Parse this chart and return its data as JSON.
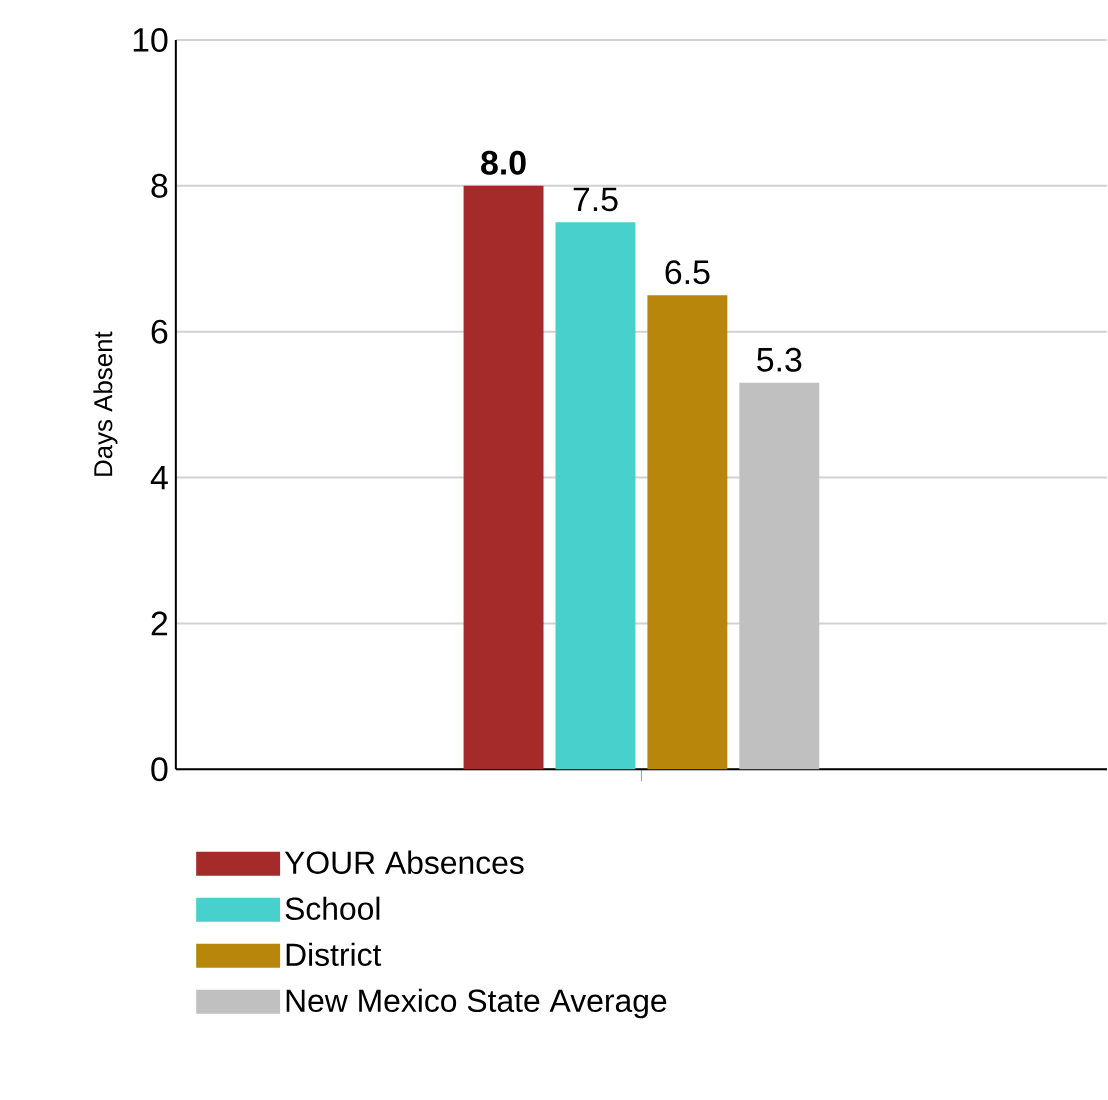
{
  "chart_data": {
    "type": "bar",
    "ylabel": "Days Absent",
    "categories": [
      null
    ],
    "series": [
      {
        "name": "YOUR Absences",
        "color": "#a52a2a",
        "values": [
          8.0
        ],
        "value_labels": [
          "**8.0**"
        ]
      },
      {
        "name": "School",
        "color": "#48d1cc",
        "values": [
          7.5
        ],
        "value_labels": [
          "7.5"
        ]
      },
      {
        "name": "District",
        "color": "#b8860b",
        "values": [
          6.5
        ],
        "value_labels": [
          "6.5"
        ]
      },
      {
        "name": "New Mexico State Average",
        "color": "#c0c0c0",
        "values": [
          5.3
        ],
        "value_labels": [
          "5.3"
        ]
      }
    ],
    "ylim": [
      0,
      10
    ],
    "yticks": [
      0,
      2,
      4,
      6,
      8,
      10
    ],
    "grid": "y",
    "legend": "bottom"
  }
}
